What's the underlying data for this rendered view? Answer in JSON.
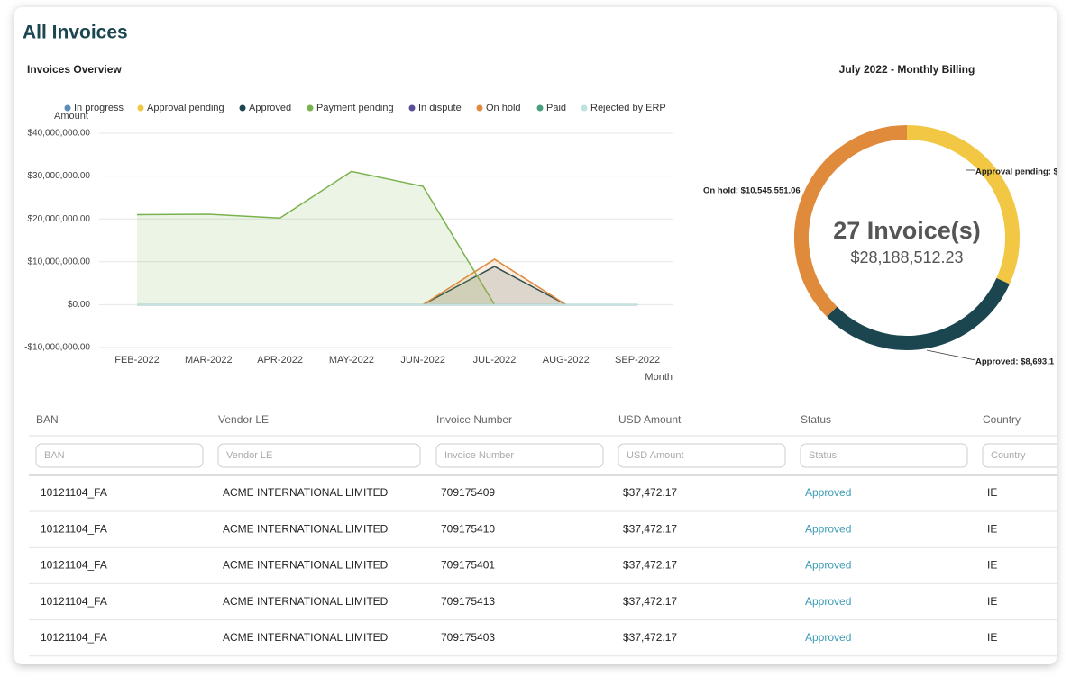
{
  "title": "All Invoices",
  "overview": {
    "type": "area",
    "title": "Invoices Overview",
    "ylabel": "Amount",
    "xlabel": "Month",
    "categories": [
      "FEB-2022",
      "MAR-2022",
      "APR-2022",
      "MAY-2022",
      "JUN-2022",
      "JUL-2022",
      "AUG-2022",
      "SEP-2022"
    ],
    "series": [
      {
        "name": "In progress",
        "color": "#5b8db8",
        "values": [
          0,
          0,
          0,
          0,
          0,
          0,
          0,
          0
        ]
      },
      {
        "name": "Approval pending",
        "color": "#f2c744",
        "values": [
          0,
          0,
          0,
          0,
          0,
          0,
          0,
          0
        ]
      },
      {
        "name": "Approved",
        "color": "#1b4650",
        "values": [
          null,
          null,
          null,
          null,
          0,
          8900000,
          0,
          null
        ]
      },
      {
        "name": "Payment pending",
        "color": "#7ab24e",
        "values": [
          21000000,
          21100000,
          20200000,
          31100000,
          27600000,
          0,
          null,
          null
        ]
      },
      {
        "name": "In dispute",
        "color": "#5c4f96",
        "values": [
          0,
          0,
          0,
          0,
          0,
          0,
          0,
          0
        ]
      },
      {
        "name": "On hold",
        "color": "#e08a3c",
        "values": [
          null,
          null,
          null,
          null,
          0,
          10600000,
          0,
          null
        ]
      },
      {
        "name": "Paid",
        "color": "#4a9e7e",
        "values": [
          0,
          0,
          0,
          0,
          0,
          0,
          0,
          0
        ]
      },
      {
        "name": "Rejected by ERP",
        "color": "#bfe3e0",
        "values": [
          0,
          0,
          0,
          0,
          0,
          0,
          0,
          0
        ]
      }
    ],
    "ylim": [
      -10000000,
      40000000
    ],
    "yticks": [
      {
        "value": -10000000,
        "label": "-$10,000,000.00"
      },
      {
        "value": 0,
        "label": "$0.00"
      },
      {
        "value": 10000000,
        "label": "$10,000,000.00"
      },
      {
        "value": 20000000,
        "label": "$20,000,000.00"
      },
      {
        "value": 30000000,
        "label": "$30,000,000.00"
      },
      {
        "value": 40000000,
        "label": "$40,000,000.00"
      }
    ],
    "grid": true,
    "legend": "top"
  },
  "billing": {
    "type": "donut",
    "title": "July 2022 - Monthly Billing",
    "count_label": "27 Invoice(s)",
    "total": {
      "value": 28188512.23,
      "label": "$28,188,512.23"
    },
    "categories": [
      "Approval pending",
      "Approved",
      "On hold"
    ],
    "values": [
      8949861.17,
      8693100,
      10545551.06
    ],
    "value_labels": [
      "Approval pending: $",
      "Approved: $8,693,1",
      "On hold: $10,545,551.06"
    ],
    "colors": [
      "#f2c744",
      "#1b4650",
      "#e08a3c"
    ]
  },
  "table": {
    "columns": [
      "BAN",
      "Vendor LE",
      "Invoice Number",
      "USD Amount",
      "Status",
      "Country"
    ],
    "filters": [
      "BAN",
      "Vendor LE",
      "Invoice Number",
      "USD Amount",
      "Status",
      "Country"
    ],
    "rows": [
      [
        "10121104_FA",
        "ACME INTERNATIONAL LIMITED",
        "709175409",
        "$37,472.17",
        "Approved",
        "IE"
      ],
      [
        "10121104_FA",
        "ACME INTERNATIONAL LIMITED",
        "709175410",
        "$37,472.17",
        "Approved",
        "IE"
      ],
      [
        "10121104_FA",
        "ACME INTERNATIONAL LIMITED",
        "709175401",
        "$37,472.17",
        "Approved",
        "IE"
      ],
      [
        "10121104_FA",
        "ACME INTERNATIONAL LIMITED",
        "709175413",
        "$37,472.17",
        "Approved",
        "IE"
      ],
      [
        "10121104_FA",
        "ACME INTERNATIONAL LIMITED",
        "709175403",
        "$37,472.17",
        "Approved",
        "IE"
      ]
    ]
  }
}
